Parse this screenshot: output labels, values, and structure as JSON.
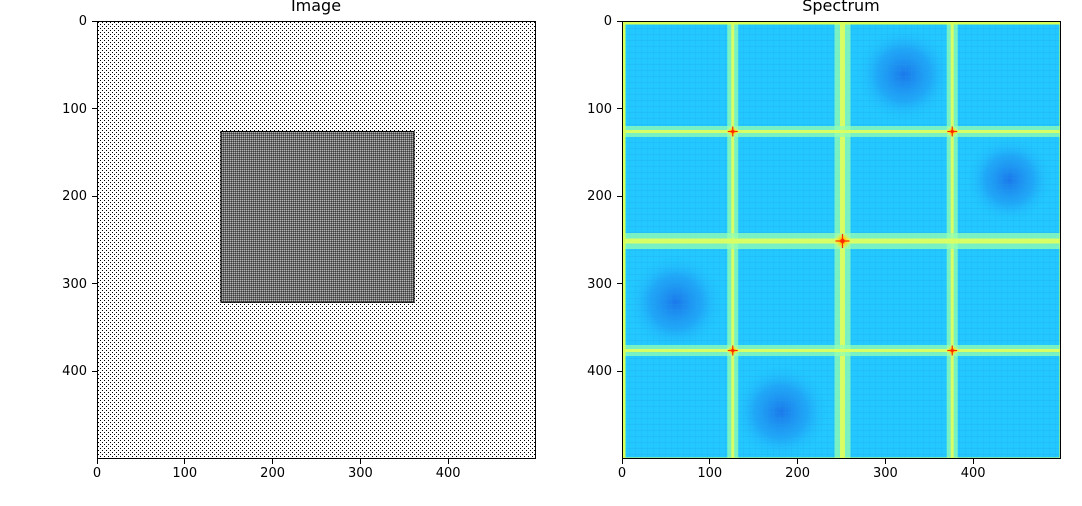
{
  "chart_data": [
    {
      "type": "heatmap",
      "title": "Image",
      "x_ticks": [
        0,
        100,
        200,
        300,
        400
      ],
      "y_ticks": [
        0,
        100,
        200,
        300,
        400
      ],
      "xlim": [
        0,
        500
      ],
      "ylim": [
        500,
        0
      ],
      "colormap": "gray",
      "background_pattern": "fine checkerboard dot texture",
      "inner_rectangle": {
        "x_range": [
          140,
          360
        ],
        "y_range": [
          125,
          320
        ],
        "tone": "gray"
      },
      "colors": {
        "background": "#ffffff",
        "dots": "#000000",
        "rectangle": "#808080"
      }
    },
    {
      "type": "heatmap",
      "title": "Spectrum",
      "x_ticks": [
        0,
        100,
        200,
        300,
        400
      ],
      "y_ticks": [
        0,
        100,
        200,
        300,
        400
      ],
      "xlim": [
        0,
        500
      ],
      "ylim": [
        500,
        0
      ],
      "colormap": "jet",
      "center_peak": [
        250,
        250
      ],
      "side_peaks": [
        [
          125,
          125
        ],
        [
          375,
          125
        ],
        [
          125,
          375
        ],
        [
          375,
          375
        ]
      ],
      "bright_lines_x": [
        125,
        250,
        375
      ],
      "bright_lines_y": [
        125,
        250,
        375
      ],
      "dark_regions": [
        {
          "x": 320,
          "y": 60,
          "radius": 55
        },
        {
          "x": 440,
          "y": 180,
          "radius": 50
        },
        {
          "x": 60,
          "y": 320,
          "radius": 55
        },
        {
          "x": 180,
          "y": 445,
          "radius": 55
        }
      ],
      "colors": {
        "background": "#22c8ff",
        "dark_region": "#1a7ef0",
        "band": "#96ffb0",
        "band_core": "#dcff60",
        "peak": "#ff2a00",
        "border": "#d8ff55"
      }
    }
  ]
}
